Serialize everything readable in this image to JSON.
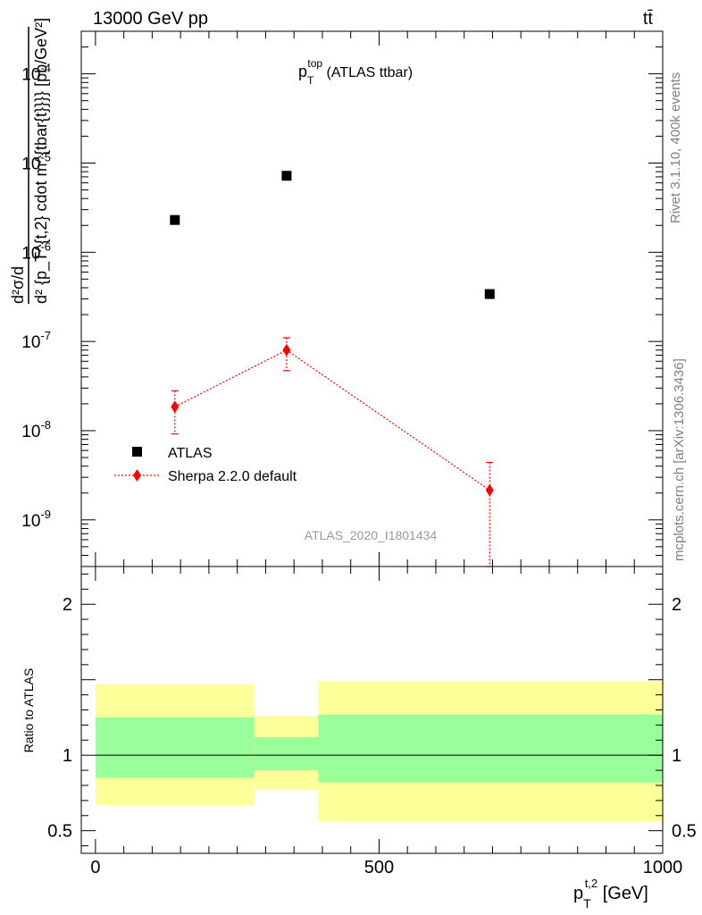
{
  "header": {
    "energy_label": "13000 GeV pp",
    "process_label": "tt̄"
  },
  "side_labels": {
    "rivet": "Rivet 3.1.10,  400k events",
    "mcplots": "mcplots.cern.ch [arXiv:1306.3436]"
  },
  "chart_data": [
    {
      "type": "scatter",
      "title": {
        "main": "p",
        "sup": "top",
        "sub": "T",
        "suffix": " (ATLAS ttbar)"
      },
      "analysis_id": "ATLAS_2020_I1801434",
      "ylabel": "d²σ/d{p_T^{t,2} cdot m_{tbar{t}}} [pb/GeV²]",
      "ylabel_parts": {
        "numerator": "d²σ/d",
        "denominator": "d² {p_T^{t,2} cdot m^{tbar{t}}}} [pb/GeV²]"
      },
      "yscale": "log",
      "ylim": [
        3e-10,
        0.0003
      ],
      "xlim": [
        -25,
        1000
      ],
      "y_ticks": [
        {
          "value": 1e-09,
          "base": "10",
          "exp": "-9"
        },
        {
          "value": 1e-08,
          "base": "10",
          "exp": "-8"
        },
        {
          "value": 1e-07,
          "base": "10",
          "exp": "-7"
        },
        {
          "value": 1e-06,
          "base": "10",
          "exp": "-6"
        },
        {
          "value": 1e-05,
          "base": "10",
          "exp": "-5"
        },
        {
          "value": 0.0001,
          "base": "10",
          "exp": "-4"
        }
      ],
      "legend_position": "bottom-left",
      "series": [
        {
          "name": "ATLAS",
          "marker": "square",
          "color": "#000000",
          "points": [
            {
              "x": 140,
              "y": 2.3e-06
            },
            {
              "x": 337,
              "y": 7.2e-06
            },
            {
              "x": 695,
              "y": 3.4e-07
            }
          ]
        },
        {
          "name": "Sherpa 2.2.0 default",
          "marker": "diamond",
          "line": "dotted",
          "color": "#ff0000",
          "points": [
            {
              "x": 140,
              "y": 1.85e-08,
              "y_low": 9.2e-09,
              "y_high": 2.8e-08
            },
            {
              "x": 337,
              "y": 8e-08,
              "y_low": 4.7e-08,
              "y_high": 1.1e-07
            },
            {
              "x": 695,
              "y": 2.15e-09,
              "y_low": 3e-10,
              "y_high": 4.4e-09
            }
          ]
        }
      ]
    },
    {
      "type": "area",
      "ylabel": "Ratio to ATLAS",
      "xlabel": {
        "main": "p",
        "sup": "t,2",
        "sub": "T",
        "suffix": " [GeV]"
      },
      "xlim": [
        -25,
        1000
      ],
      "ylim": [
        0.35,
        2.25
      ],
      "x_ticks": [
        0,
        500,
        1000
      ],
      "y_ticks": [
        0.5,
        1,
        2
      ],
      "reference_line": 1,
      "bins": [
        {
          "x_low": 0,
          "x_high": 280,
          "inner": [
            0.85,
            1.25
          ],
          "outer": [
            0.67,
            1.47
          ]
        },
        {
          "x_low": 280,
          "x_high": 393,
          "inner": [
            0.9,
            1.12
          ],
          "outer": [
            0.77,
            1.26
          ]
        },
        {
          "x_low": 393,
          "x_high": 1000,
          "inner": [
            0.82,
            1.27
          ],
          "outer": [
            0.56,
            1.49
          ]
        }
      ],
      "band_colors": {
        "inner": "#99ff99",
        "outer": "#ffff99"
      }
    }
  ]
}
